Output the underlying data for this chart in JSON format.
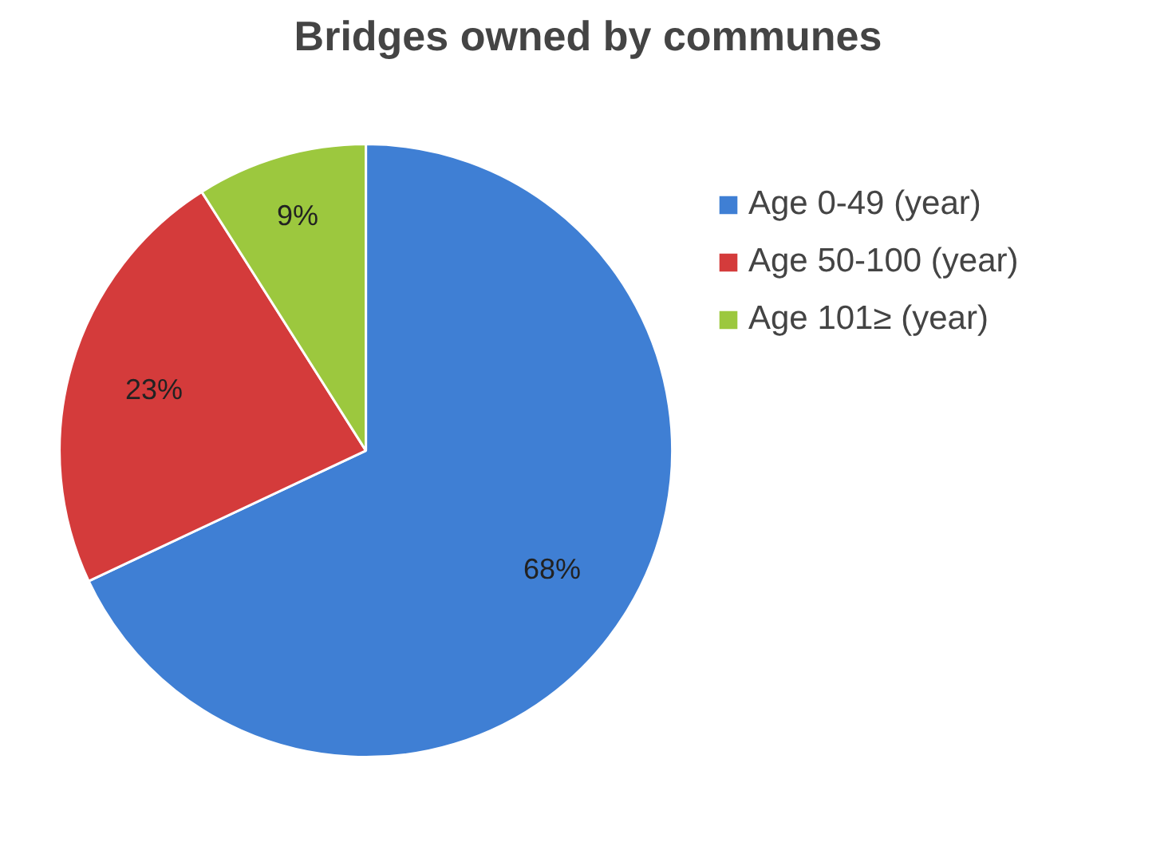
{
  "chart_data": {
    "type": "pie",
    "title": "Bridges owned by communes",
    "categories": [
      "Age 0-49 (year)",
      "Age 50-100 (year)",
      "Age 101≥ (year)"
    ],
    "values": [
      68,
      23,
      9
    ],
    "value_labels": [
      "68%",
      "23%",
      "9%"
    ],
    "colors": [
      "#3f7fd4",
      "#d43b3b",
      "#9cc83e"
    ],
    "legend": "right"
  }
}
